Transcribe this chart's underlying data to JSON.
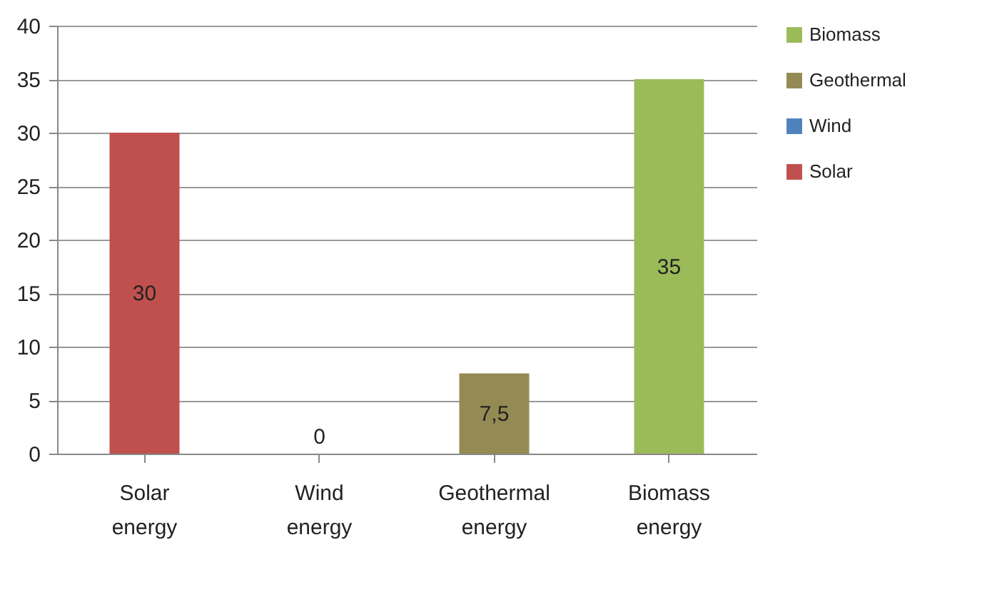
{
  "chart_data": {
    "type": "bar",
    "categories": [
      "Solar energy",
      "Wind energy",
      "Geothermal energy",
      "Biomass energy"
    ],
    "series": [
      {
        "name": "Solar",
        "color": "#c0504d",
        "values": [
          30,
          null,
          null,
          null
        ],
        "value_labels": [
          "30",
          null,
          null,
          null
        ]
      },
      {
        "name": "Wind",
        "color": "#4f81bd",
        "values": [
          null,
          0,
          null,
          null
        ],
        "value_labels": [
          null,
          "0",
          null,
          null
        ]
      },
      {
        "name": "Geothermal",
        "color": "#948a54",
        "values": [
          null,
          null,
          7.5,
          null
        ],
        "value_labels": [
          null,
          null,
          "7,5",
          null
        ]
      },
      {
        "name": "Biomass",
        "color": "#9bbb59",
        "values": [
          null,
          null,
          null,
          35
        ],
        "value_labels": [
          null,
          null,
          null,
          "35"
        ]
      }
    ],
    "ylim": [
      0,
      40
    ],
    "yticks": [
      0,
      5,
      10,
      15,
      20,
      25,
      30,
      35,
      40
    ],
    "grid": "y",
    "legend": "right"
  }
}
